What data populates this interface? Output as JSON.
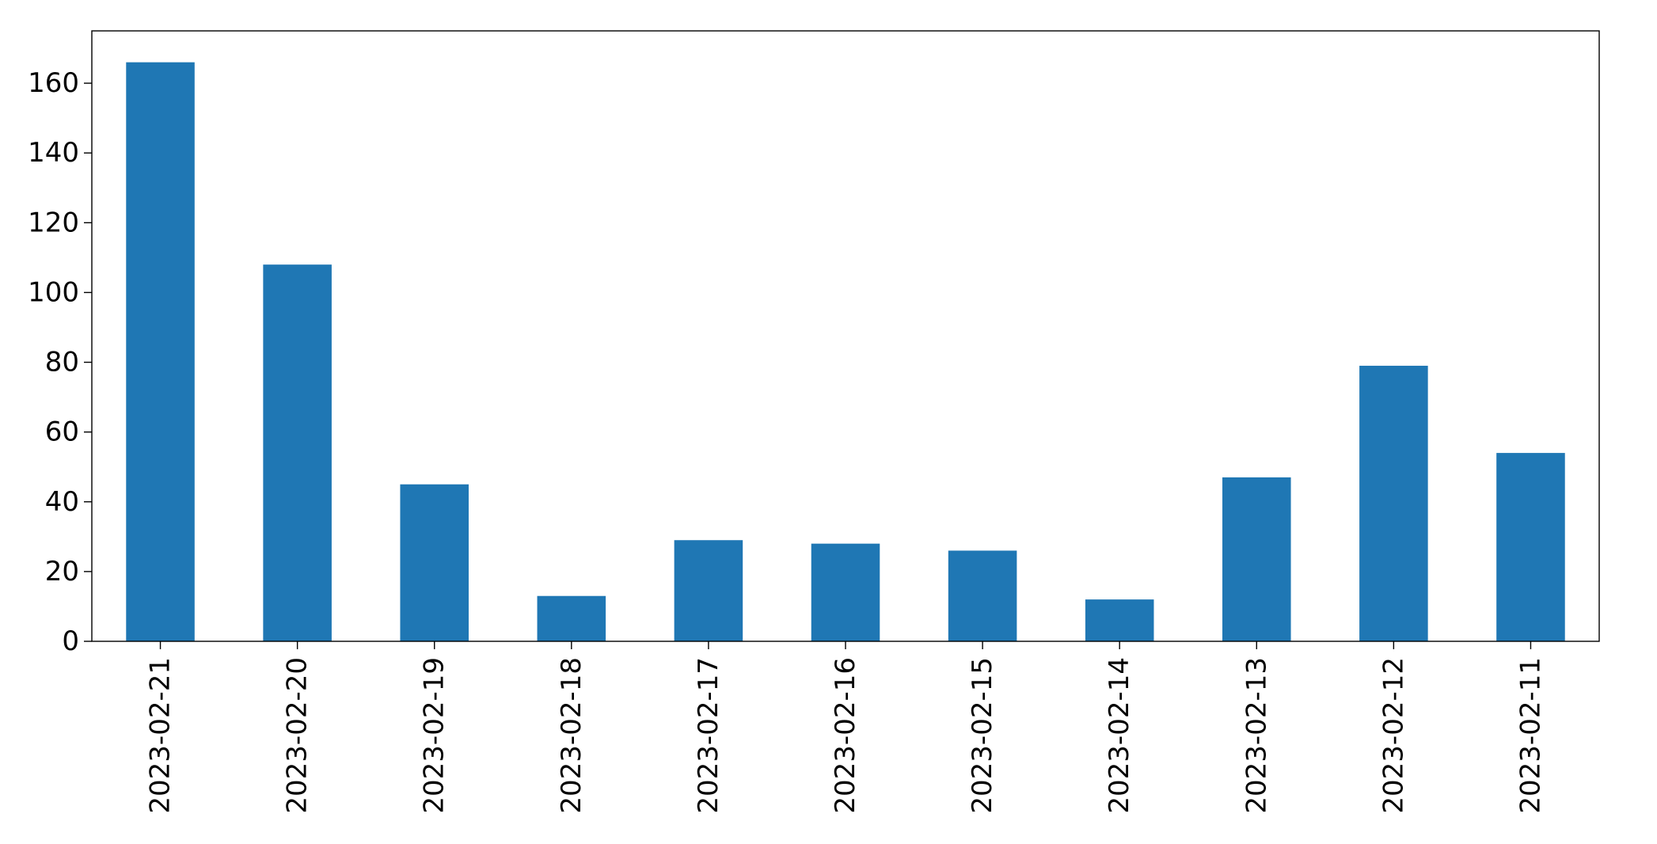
{
  "chart_data": {
    "type": "bar",
    "title": "",
    "xlabel": "",
    "ylabel": "",
    "categories": [
      "2023-02-21",
      "2023-02-20",
      "2023-02-19",
      "2023-02-18",
      "2023-02-17",
      "2023-02-16",
      "2023-02-15",
      "2023-02-14",
      "2023-02-13",
      "2023-02-12",
      "2023-02-11"
    ],
    "values": [
      166,
      108,
      45,
      13,
      29,
      28,
      26,
      12,
      47,
      79,
      54
    ],
    "ylim": [
      0,
      175
    ],
    "yticks": [
      "0",
      "20",
      "40",
      "60",
      "80",
      "100",
      "120",
      "140",
      "160"
    ],
    "grid": false,
    "legend": "none",
    "bar_color": "#1f77b4"
  }
}
